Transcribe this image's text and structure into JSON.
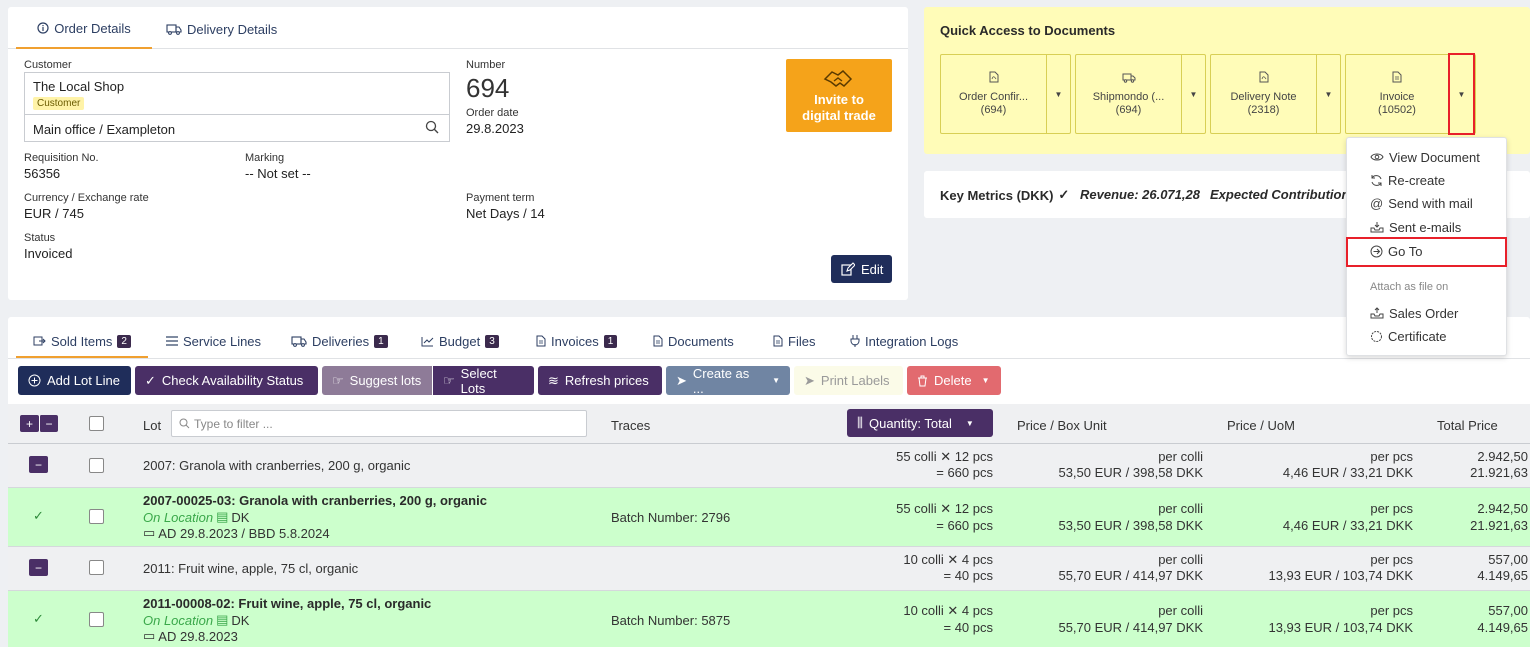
{
  "order_tabs": {
    "order_details": "Order Details",
    "delivery_details": "Delivery Details"
  },
  "order": {
    "customer_label": "Customer",
    "customer_name": "The Local Shop",
    "customer_badge": "Customer",
    "address": "Main office / Exampleton",
    "number_label": "Number",
    "number": "694",
    "order_date_label": "Order date",
    "order_date": "29.8.2023",
    "invite_line1": "Invite to",
    "invite_line2": "digital trade",
    "requisition_label": "Requisition No.",
    "requisition": "56356",
    "marking_label": "Marking",
    "marking": "-- Not set --",
    "currency_label": "Currency / Exchange rate",
    "currency": "EUR / 745",
    "payment_label": "Payment term",
    "payment": "Net Days / 14",
    "status_label": "Status",
    "status": "Invoiced",
    "edit_label": "Edit"
  },
  "quick_access": {
    "title": "Quick Access to Documents",
    "docs": [
      {
        "name": "Order Confir...",
        "number": "(694)"
      },
      {
        "name": "Shipmondo (...",
        "number": "(694)"
      },
      {
        "name": "Delivery Note",
        "number": "(2318)"
      },
      {
        "name": "Invoice",
        "number": "(10502)"
      }
    ]
  },
  "metrics": {
    "title": "Key Metrics (DKK)",
    "revenue": "Revenue: 26.071,28",
    "expected": "Expected Contribution"
  },
  "dropdown": {
    "view": "View Document",
    "recreate": "Re-create",
    "send_mail": "Send with mail",
    "sent_emails": "Sent e-mails",
    "goto": "Go To",
    "attach_header": "Attach as file on",
    "sales_order": "Sales Order",
    "certificate": "Certificate"
  },
  "bottom_tabs": [
    {
      "label": "Sold Items",
      "count": "2"
    },
    {
      "label": "Service Lines",
      "count": ""
    },
    {
      "label": "Deliveries",
      "count": "1"
    },
    {
      "label": "Budget",
      "count": "3"
    },
    {
      "label": "Invoices",
      "count": "1"
    },
    {
      "label": "Documents",
      "count": ""
    },
    {
      "label": "Files",
      "count": ""
    },
    {
      "label": "Integration Logs",
      "count": ""
    }
  ],
  "toolbar": {
    "add_lot": "Add Lot Line",
    "check": "Check Availability Status",
    "suggest": "Suggest lots",
    "select": "Select Lots",
    "refresh": "Refresh prices",
    "create": "Create as ...",
    "print": "Print Labels",
    "delete": "Delete"
  },
  "table": {
    "lot": "Lot",
    "filter_placeholder": "Type to filter ...",
    "traces": "Traces",
    "quantity": "Quantity: Total",
    "price_box": "Price / Box Unit",
    "price_uom": "Price / UoM",
    "total": "Total Price"
  },
  "rows": [
    {
      "lot": "2007: Granola with cranberries, 200 g, organic",
      "qty1": "55 colli ✕ 12 pcs",
      "qty2": "= 660 pcs",
      "pb1": "per colli",
      "pb2": "53,50 EUR / 398,58 DKK",
      "pu1": "per pcs",
      "pu2": "4,46 EUR / 33,21 DKK",
      "t1": "2.942,50",
      "t2": "21.921,63"
    },
    {
      "lot": "2007-00025-03: Granola with cranberries, 200 g, organic",
      "loc": "On Location",
      "country": "DK",
      "dates": "AD 29.8.2023 / BBD 5.8.2024",
      "trace": "Batch Number: 2796",
      "qty1": "55 colli ✕ 12 pcs",
      "qty2": "= 660 pcs",
      "pb1": "per colli",
      "pb2": "53,50 EUR / 398,58 DKK",
      "pu1": "per pcs",
      "pu2": "4,46 EUR / 33,21 DKK",
      "t1": "2.942,50",
      "t2": "21.921,63"
    },
    {
      "lot": "2011: Fruit wine, apple, 75 cl, organic",
      "qty1": "10 colli ✕ 4 pcs",
      "qty2": "= 40 pcs",
      "pb1": "per colli",
      "pb2": "55,70 EUR / 414,97 DKK",
      "pu1": "per pcs",
      "pu2": "13,93 EUR / 103,74 DKK",
      "t1": "557,00",
      "t2": "4.149,65"
    },
    {
      "lot": "2011-00008-02: Fruit wine, apple, 75 cl, organic",
      "loc": "On Location",
      "country": "DK",
      "dates": "AD 29.8.2023",
      "trace": "Batch Number: 5875",
      "qty1": "10 colli ✕ 4 pcs",
      "qty2": "= 40 pcs",
      "pb1": "per colli",
      "pb2": "55,70 EUR / 414,97 DKK",
      "pu1": "per pcs",
      "pu2": "13,93 EUR / 103,74 DKK",
      "t1": "557,00",
      "t2": "4.149,65"
    }
  ],
  "colors": {
    "navy": "#1f2d5a",
    "purple": "#4a2f66",
    "orange": "#f5a31a",
    "yellow": "#fffcb8",
    "green": "#ccffcc",
    "highlight_red": "#e8202a"
  }
}
